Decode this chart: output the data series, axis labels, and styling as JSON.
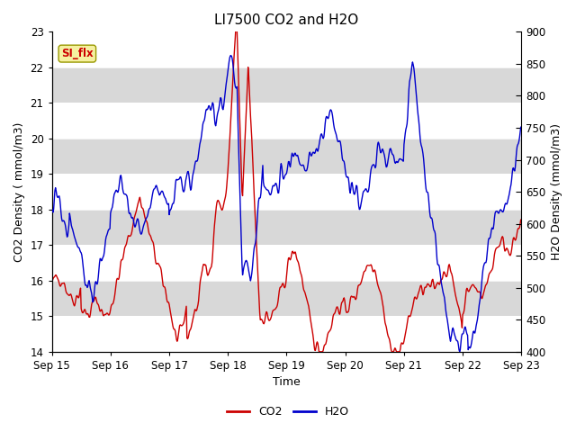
{
  "title": "LI7500 CO2 and H2O",
  "xlabel": "Time",
  "ylabel_left": "CO2 Density ( mmol/m3)",
  "ylabel_right": "H2O Density (mmol/m3)",
  "ylim_left": [
    14.0,
    23.0
  ],
  "ylim_right": [
    400,
    900
  ],
  "yticks_left": [
    14.0,
    15.0,
    16.0,
    17.0,
    18.0,
    19.0,
    20.0,
    21.0,
    22.0,
    23.0
  ],
  "yticks_right": [
    400,
    450,
    500,
    550,
    600,
    650,
    700,
    750,
    800,
    850,
    900
  ],
  "color_co2": "#cc0000",
  "color_h2o": "#0000cc",
  "annotation_text": "SI_flx",
  "background_color": "#d8d8d8",
  "grid_color": "#ffffff",
  "title_fontsize": 11,
  "axis_label_fontsize": 9,
  "tick_fontsize": 8.5,
  "legend_fontsize": 9,
  "line_width": 1.0
}
